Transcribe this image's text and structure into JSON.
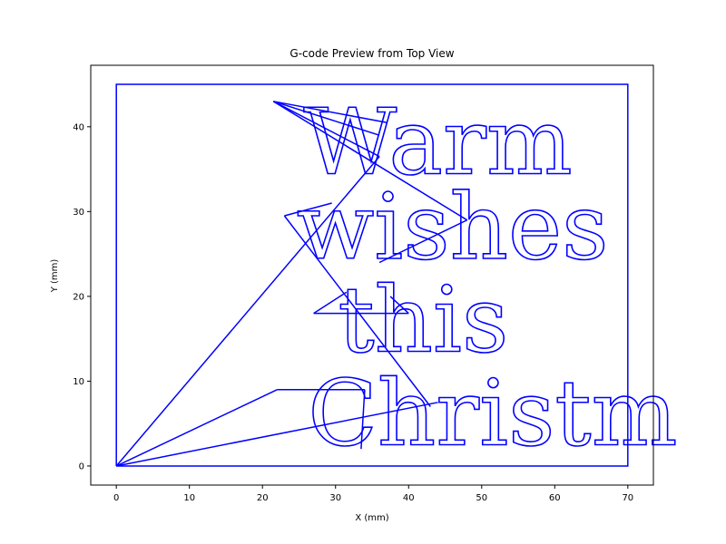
{
  "chart_data": {
    "type": "line",
    "title": "G-code Preview from Top View",
    "xlabel": "X (mm)",
    "ylabel": "Y (mm)",
    "xlim": [
      -3.5,
      73.5
    ],
    "ylim": [
      -2.25,
      47.25
    ],
    "xticks": [
      0,
      10,
      20,
      30,
      40,
      50,
      60,
      70
    ],
    "yticks": [
      0,
      10,
      20,
      30,
      40
    ],
    "grid": false,
    "line_color": "#0000ff",
    "series": [
      {
        "role": "border",
        "points": [
          [
            0,
            0
          ],
          [
            0,
            45
          ],
          [
            70,
            45
          ],
          [
            70,
            0
          ],
          [
            0,
            0
          ]
        ]
      },
      {
        "role": "travel-moves",
        "segments": [
          [
            [
              0,
              0
            ],
            [
              44,
              7.5
            ]
          ],
          [
            [
              0,
              0
            ],
            [
              22,
              9
            ]
          ],
          [
            [
              22,
              9
            ],
            [
              34,
              9
            ]
          ],
          [
            [
              34,
              9
            ],
            [
              33.5,
              2
            ]
          ],
          [
            [
              0,
              0
            ],
            [
              36,
              36.5
            ]
          ],
          [
            [
              36,
              36.5
            ],
            [
              21.5,
              43
            ]
          ],
          [
            [
              21.5,
              43
            ],
            [
              36,
              39
            ]
          ],
          [
            [
              21.5,
              43
            ],
            [
              37,
              40.5
            ]
          ],
          [
            [
              21.5,
              43
            ],
            [
              48,
              29
            ]
          ],
          [
            [
              48,
              29
            ],
            [
              36,
              24
            ]
          ],
          [
            [
              23,
              29.5
            ],
            [
              29.5,
              31
            ]
          ],
          [
            [
              23,
              29.5
            ],
            [
              43,
              7
            ]
          ],
          [
            [
              27,
              18
            ],
            [
              40,
              18
            ]
          ],
          [
            [
              40,
              18
            ],
            [
              37.5,
              20
            ]
          ],
          [
            [
              27,
              18
            ],
            [
              31.5,
              20.5
            ]
          ]
        ]
      }
    ],
    "text_lines": [
      {
        "text": "Warm",
        "x": 44,
        "y": 34.5
      },
      {
        "text": "wishes",
        "x": 46,
        "y": 24.5
      },
      {
        "text": "this",
        "x": 42,
        "y": 13.5
      },
      {
        "text": "Christm",
        "x": 51.5,
        "y": 2.5
      }
    ]
  }
}
